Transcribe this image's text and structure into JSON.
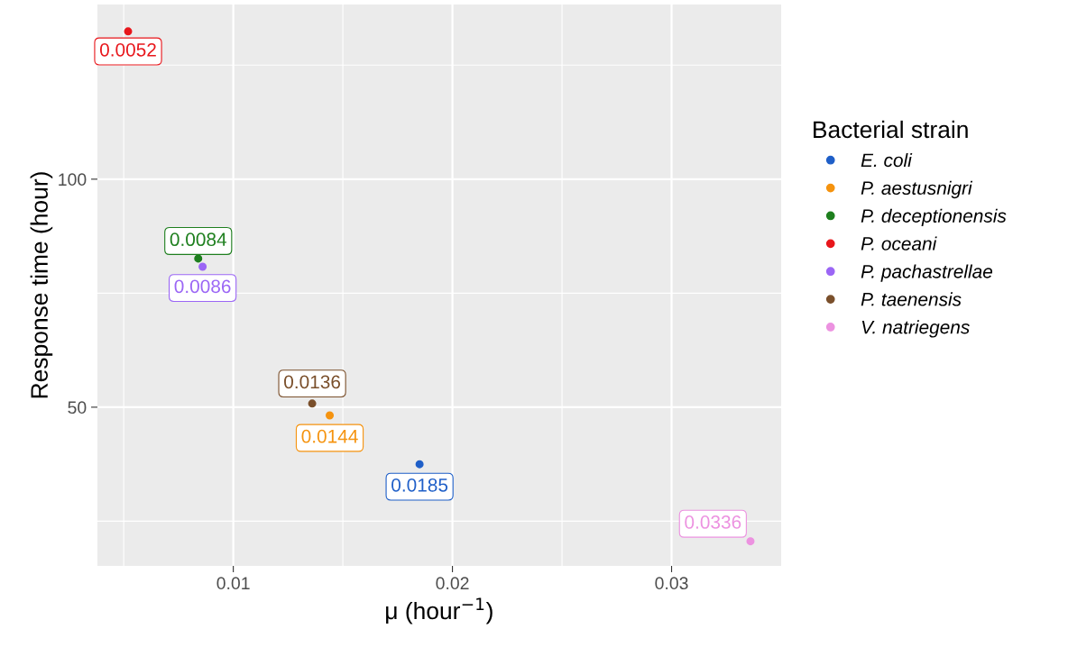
{
  "chart_data": {
    "type": "scatter",
    "xlabel": "μ (hour$^{−1}$)",
    "ylabel": "Response time (hour)",
    "legend_title": "Bacterial strain",
    "legend": "right",
    "grid": true,
    "marker": "circle",
    "xlim": [
      0.0038,
      0.035
    ],
    "ylim": [
      15.2,
      138.3
    ],
    "xticks": [
      0.01,
      0.02,
      0.03
    ],
    "yticks": [
      50,
      100
    ],
    "series": [
      {
        "name": "E. coli",
        "color": "#1f5fc8",
        "x": [
          0.0185
        ],
        "values": [
          37.5
        ]
      },
      {
        "name": "P. aestusnigri",
        "color": "#f5930f",
        "x": [
          0.0144
        ],
        "values": [
          48.2
        ]
      },
      {
        "name": "P. deceptionensis",
        "color": "#1e7f1e",
        "x": [
          0.0084
        ],
        "values": [
          82.6
        ]
      },
      {
        "name": "P. oceani",
        "color": "#e8161b",
        "x": [
          0.0052
        ],
        "values": [
          132.4
        ]
      },
      {
        "name": "P. pachastrellae",
        "color": "#9b66f5",
        "x": [
          0.0086
        ],
        "values": [
          80.8
        ]
      },
      {
        "name": "P. taenensis",
        "color": "#7a4f2b",
        "x": [
          0.0136
        ],
        "values": [
          50.8
        ]
      },
      {
        "name": "V. natriegens",
        "color": "#ec92e0",
        "x": [
          0.0336
        ],
        "values": [
          20.6
        ]
      }
    ],
    "annotations": [
      {
        "text": "0.0185",
        "x": 0.0185,
        "y": 37.5
      },
      {
        "text": "0.0144",
        "x": 0.0144,
        "y": 48.2
      },
      {
        "text": "0.0084",
        "x": 0.0084,
        "y": 82.6
      },
      {
        "text": "0.0052",
        "x": 0.0052,
        "y": 132.4
      },
      {
        "text": "0.0086",
        "x": 0.0086,
        "y": 80.8
      },
      {
        "text": "0.0136",
        "x": 0.0136,
        "y": 50.8
      },
      {
        "text": "0.0336",
        "x": 0.0336,
        "y": 20.6
      }
    ]
  }
}
